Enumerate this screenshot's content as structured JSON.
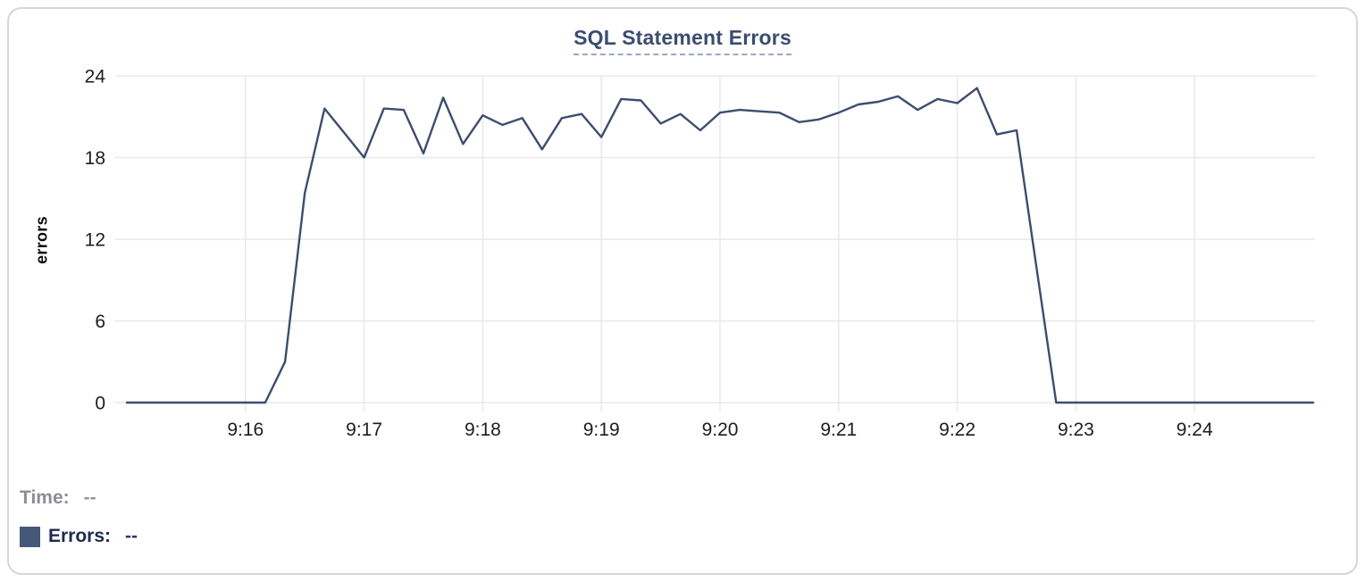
{
  "title": {
    "text": "SQL Statement Errors",
    "color": "#3b4d6f",
    "underline_color": "#9aa8c2"
  },
  "tooltip_readout": {
    "time_label": "Time:",
    "time_value": "--",
    "errors_label": "Errors:",
    "errors_value": "--",
    "time_color": "#8b8e94",
    "errors_color": "#1d2b4e",
    "swatch_color": "#46587a"
  },
  "card": {
    "background": "#ffffff",
    "border_color": "#d5d6da"
  },
  "chart_data": {
    "type": "line",
    "title": "SQL Statement Errors",
    "xlabel": "",
    "ylabel": "errors",
    "ylim": [
      0,
      24
    ],
    "y_ticks": [
      0,
      6,
      12,
      18,
      24
    ],
    "x_tick_labels": [
      "9:16",
      "9:17",
      "9:18",
      "9:19",
      "9:20",
      "9:21",
      "9:22",
      "9:23",
      "9:24"
    ],
    "x_domain": [
      "9:15:00",
      "9:25:00"
    ],
    "grid": true,
    "legend_position": "bottom-left",
    "colors": {
      "line": "#3d4d6e",
      "grid": "#e8e8ea",
      "tick_label": "#1d1d1f"
    },
    "series": [
      {
        "name": "Errors",
        "color": "#3d4d6e",
        "points": [
          [
            "9:15:00",
            0
          ],
          [
            "9:15:10",
            0
          ],
          [
            "9:15:20",
            0
          ],
          [
            "9:15:30",
            0
          ],
          [
            "9:15:40",
            0
          ],
          [
            "9:15:50",
            0
          ],
          [
            "9:16:00",
            0
          ],
          [
            "9:16:10",
            0
          ],
          [
            "9:16:20",
            3
          ],
          [
            "9:16:30",
            15.4
          ],
          [
            "9:16:40",
            21.6
          ],
          [
            "9:16:50",
            19.8
          ],
          [
            "9:17:00",
            18
          ],
          [
            "9:17:10",
            21.6
          ],
          [
            "9:17:20",
            21.5
          ],
          [
            "9:17:30",
            18.3
          ],
          [
            "9:17:40",
            22.4
          ],
          [
            "9:17:50",
            19
          ],
          [
            "9:18:00",
            21.1
          ],
          [
            "9:18:10",
            20.4
          ],
          [
            "9:18:20",
            20.9
          ],
          [
            "9:18:30",
            18.6
          ],
          [
            "9:18:40",
            20.9
          ],
          [
            "9:18:50",
            21.2
          ],
          [
            "9:19:00",
            19.5
          ],
          [
            "9:19:10",
            22.3
          ],
          [
            "9:19:20",
            22.2
          ],
          [
            "9:19:30",
            20.5
          ],
          [
            "9:19:40",
            21.2
          ],
          [
            "9:19:50",
            20
          ],
          [
            "9:20:00",
            21.3
          ],
          [
            "9:20:10",
            21.5
          ],
          [
            "9:20:20",
            21.4
          ],
          [
            "9:20:30",
            21.3
          ],
          [
            "9:20:40",
            20.6
          ],
          [
            "9:20:50",
            20.8
          ],
          [
            "9:21:00",
            21.3
          ],
          [
            "9:21:10",
            21.9
          ],
          [
            "9:21:20",
            22.1
          ],
          [
            "9:21:30",
            22.5
          ],
          [
            "9:21:40",
            21.5
          ],
          [
            "9:21:50",
            22.3
          ],
          [
            "9:22:00",
            22
          ],
          [
            "9:22:10",
            23.1
          ],
          [
            "9:22:20",
            19.7
          ],
          [
            "9:22:30",
            20
          ],
          [
            "9:22:40",
            10
          ],
          [
            "9:22:50",
            0
          ],
          [
            "9:23:00",
            0
          ],
          [
            "9:23:10",
            0
          ],
          [
            "9:23:20",
            0
          ],
          [
            "9:23:30",
            0
          ],
          [
            "9:23:40",
            0
          ],
          [
            "9:23:50",
            0
          ],
          [
            "9:24:00",
            0
          ],
          [
            "9:24:10",
            0
          ],
          [
            "9:24:20",
            0
          ],
          [
            "9:24:30",
            0
          ],
          [
            "9:24:40",
            0
          ],
          [
            "9:24:50",
            0
          ],
          [
            "9:25:00",
            0
          ]
        ]
      }
    ]
  }
}
